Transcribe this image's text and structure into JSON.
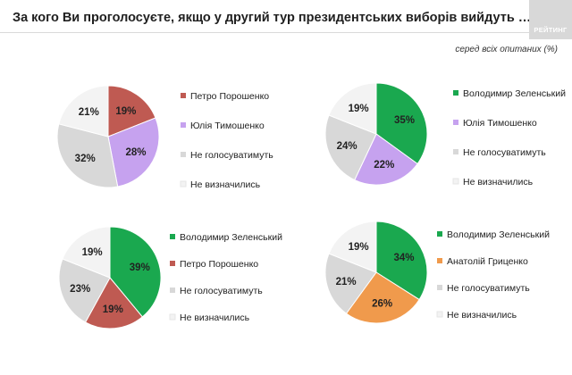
{
  "title": "За кого Ви проголосуєте, якщо у другий тур президентських виборів вийдуть …?",
  "subtitle": "серед всіх опитаних (%)",
  "logo": "РЕЙТИНГ",
  "colors": {
    "Петро Порошенко": "#bf5a52",
    "Юлія Тимошенко": "#c6a2ef",
    "Не голосуватимуть": "#d8d8d8",
    "Не визначились": "#f3f3f3",
    "Володимир Зеленський": "#1aa84f",
    "Анатолій Гриценко": "#f09a4c"
  },
  "chart_data": [
    {
      "type": "pie",
      "categories": [
        "Петро Порошенко",
        "Юлія Тимошенко",
        "Не голосуватимуть",
        "Не визначились"
      ],
      "values": [
        19,
        28,
        32,
        21
      ],
      "labels": [
        "19%",
        "28%",
        "32%",
        "21%"
      ]
    },
    {
      "type": "pie",
      "categories": [
        "Володимир Зеленський",
        "Юлія Тимошенко",
        "Не голосуватимуть",
        "Не визначились"
      ],
      "values": [
        35,
        22,
        24,
        19
      ],
      "labels": [
        "35%",
        "22%",
        "24%",
        "19%"
      ]
    },
    {
      "type": "pie",
      "categories": [
        "Володимир Зеленський",
        "Петро Порошенко",
        "Не голосуватимуть",
        "Не визначились"
      ],
      "values": [
        39,
        19,
        23,
        19
      ],
      "labels": [
        "39%",
        "19%",
        "23%",
        "19%"
      ]
    },
    {
      "type": "pie",
      "categories": [
        "Володимир Зеленський",
        "Анатолій Гриценко",
        "Не голосуватимуть",
        "Не визначились"
      ],
      "values": [
        34,
        26,
        21,
        19
      ],
      "labels": [
        "34%",
        "26%",
        "21%",
        "19%"
      ]
    }
  ]
}
